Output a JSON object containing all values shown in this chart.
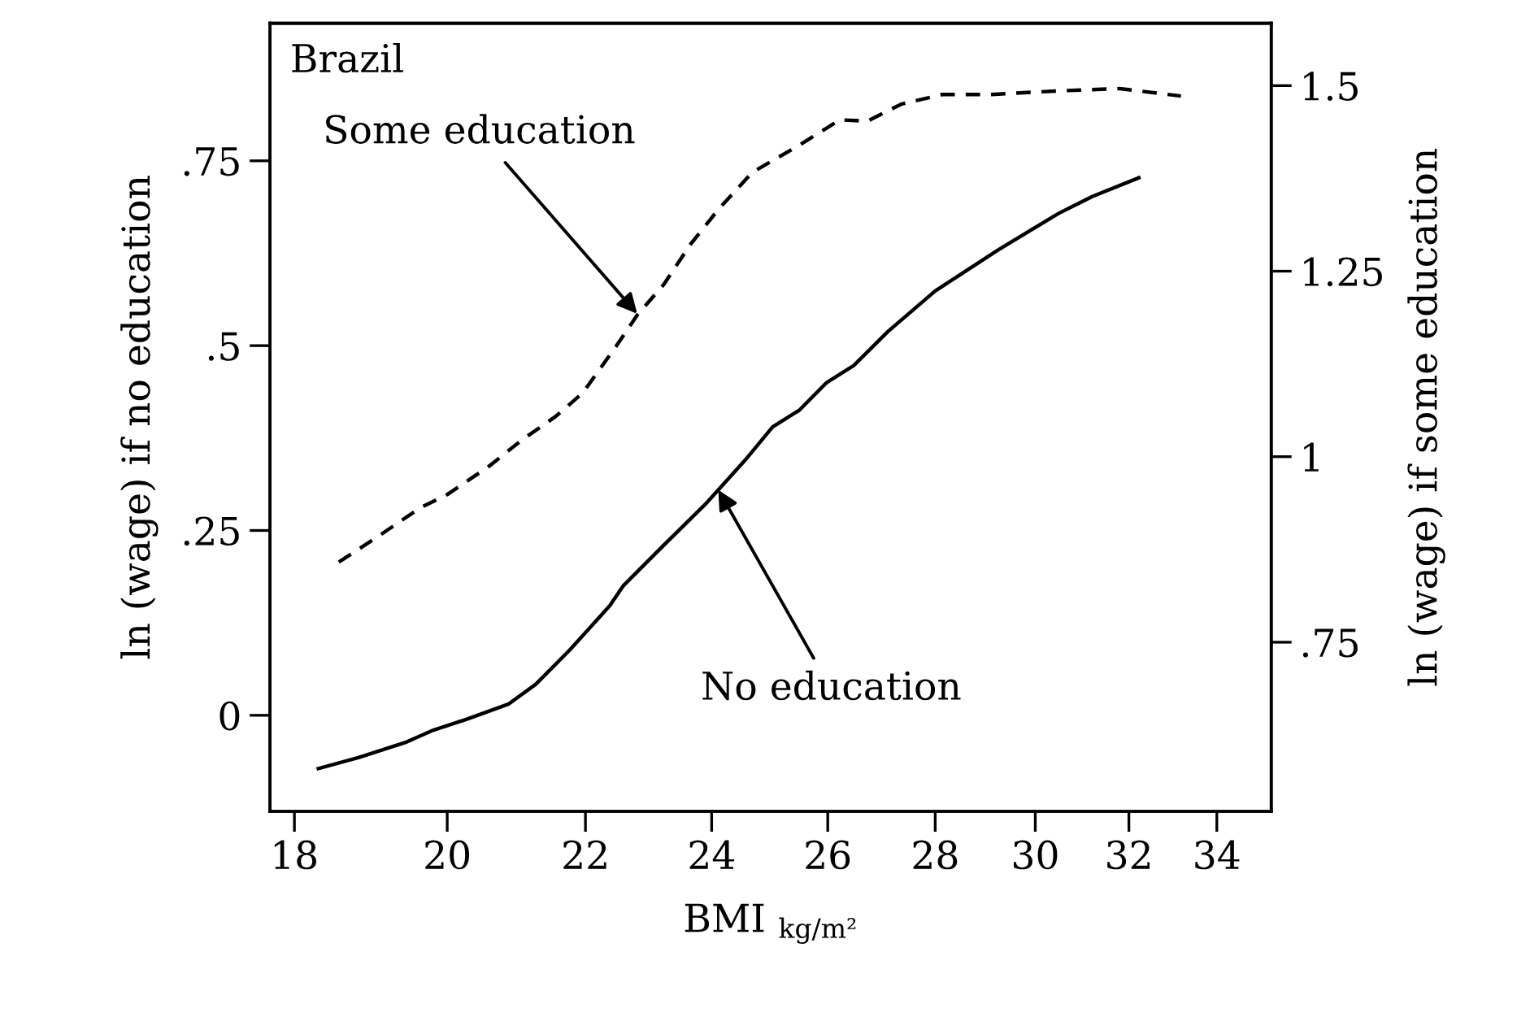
{
  "chart_data": {
    "type": "line",
    "xlabel": "BMI $_{kg/m²}$",
    "ylabel": "ln (wage) if no education",
    "y2label": "ln (wage) if some education",
    "log": "x",
    "grid": false,
    "legend": false,
    "marker": "none",
    "xlim": [
      17.7,
      35.3
    ],
    "xticks": [
      18,
      20,
      22,
      24,
      26,
      28,
      30,
      32,
      34
    ],
    "ylim": [
      -0.13,
      0.936
    ],
    "yticks": [
      0,
      {
        "value": 0.25,
        "label": ".25"
      },
      {
        "value": 0.5,
        "label": ".5"
      },
      {
        "value": 0.75,
        "label": ".75"
      }
    ],
    "y2lim": [
      0.522,
      1.584
    ],
    "y2ticks": [
      {
        "value": 0.75,
        "label": ".75"
      },
      1,
      1.25,
      1.5
    ],
    "annotations": [
      "Brazil",
      {
        "text": "Some education",
        "x": 22.8,
        "y": 0.543
      },
      {
        "text": "No education",
        "x": 24.11,
        "y": 0.305
      }
    ],
    "series": [
      {
        "color": "#000000",
        "line_style": "solid",
        "x": [
          18.3,
          18.82,
          19.45,
          19.81,
          20.28,
          20.86,
          21.26,
          21.76,
          22.37,
          22.58,
          23.22,
          23.89,
          24.56,
          25.03,
          25.5,
          25.98,
          26.47,
          27.1,
          28.0,
          29.23,
          30.49,
          31.21,
          32.22
        ],
        "values": [
          -0.072,
          -0.057,
          -0.036,
          -0.02,
          -0.005,
          0.015,
          0.042,
          0.088,
          0.148,
          0.175,
          0.23,
          0.285,
          0.345,
          0.39,
          0.413,
          0.45,
          0.473,
          0.519,
          0.574,
          0.629,
          0.679,
          0.702,
          0.727
        ]
      },
      {
        "color": "#000000",
        "line_style": "dashed",
        "axis": "y2",
        "x": [
          18.56,
          19.09,
          19.63,
          20.0,
          20.57,
          21.05,
          21.55,
          21.96,
          22.48,
          22.8,
          23.22,
          23.66,
          24.11,
          24.68,
          25.5,
          26.22,
          26.72,
          27.35,
          28.13,
          29.06,
          30.49,
          31.8,
          33.17
        ],
        "values": [
          0.858,
          0.894,
          0.931,
          0.949,
          0.986,
          1.022,
          1.054,
          1.086,
          1.15,
          1.191,
          1.232,
          1.287,
          1.333,
          1.383,
          1.42,
          1.454,
          1.452,
          1.475,
          1.488,
          1.488,
          1.493,
          1.496,
          1.486
        ]
      }
    ]
  }
}
